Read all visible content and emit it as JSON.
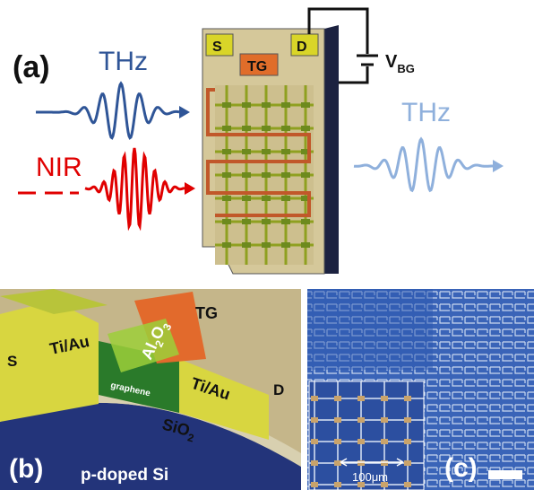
{
  "panel_a": {
    "label": "(a)",
    "thz_in": "THz",
    "nir": "NIR",
    "source": "S",
    "drain": "D",
    "top_gate": "TG",
    "bias": {
      "main": "V",
      "sub": "BG"
    },
    "thz_out": "THz"
  },
  "panel_b": {
    "label": "(b)",
    "source": "S",
    "contact_left": "Ti/Au",
    "top_gate": "TG",
    "dielectric": {
      "main": "Al",
      "sub1": "2",
      "mid": "O",
      "sub2": "3"
    },
    "channel": "graphene",
    "contact_right": "Ti/Au",
    "drain": "D",
    "oxide": {
      "main": "SiO",
      "sub": "2"
    },
    "substrate": "p-doped Si"
  },
  "panel_c": {
    "label": "(c)",
    "scale": "100μm"
  }
}
